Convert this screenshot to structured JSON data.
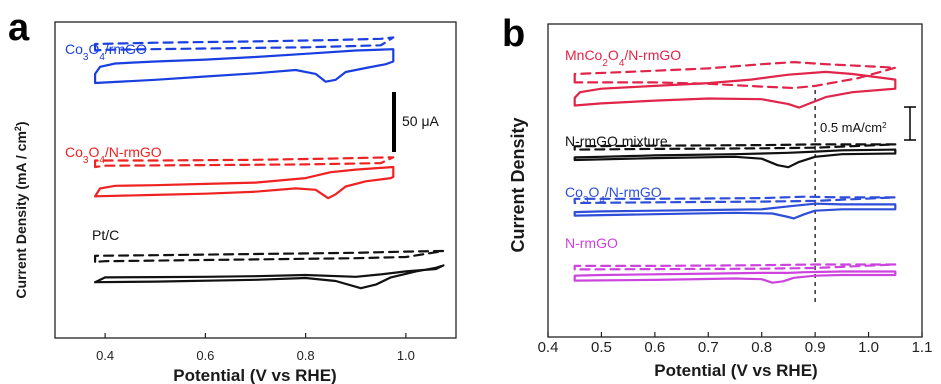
{
  "chart_data": [
    {
      "panel": "a",
      "type": "line",
      "xlabel": "Potential (V vs RHE)",
      "ylabel": "Current Density (mA / cm²)",
      "xlim": [
        0.3,
        1.1
      ],
      "xticks": [
        "0.4",
        "0.6",
        "0.8",
        "1.0"
      ],
      "xtick_values": [
        0.4,
        0.6,
        0.8,
        1.0
      ],
      "scale_bar": "50 μA",
      "colors": {
        "blue": "#1a3fe0",
        "red": "#ee2222",
        "black": "#111111"
      },
      "series": [
        {
          "name": "Co3O4/rmGO",
          "color": "blue",
          "solid": [
            [
              0.38,
              -2
            ],
            [
              0.5,
              -1.5
            ],
            [
              0.6,
              -1
            ],
            [
              0.7,
              -0.5
            ],
            [
              0.78,
              0
            ],
            [
              0.82,
              -0.6
            ],
            [
              0.84,
              -1.8
            ],
            [
              0.86,
              -1.5
            ],
            [
              0.88,
              -0.3
            ],
            [
              0.92,
              0.3
            ],
            [
              0.96,
              0.9
            ],
            [
              0.975,
              1.3
            ],
            [
              0.975,
              3.2
            ],
            [
              0.9,
              3.0
            ],
            [
              0.8,
              2.5
            ],
            [
              0.7,
              2.0
            ],
            [
              0.6,
              1.6
            ],
            [
              0.5,
              1.3
            ],
            [
              0.42,
              1.0
            ],
            [
              0.39,
              0.5
            ],
            [
              0.38,
              -0.6
            ],
            [
              0.38,
              -2
            ]
          ],
          "dashed": [
            [
              0.38,
              3.0
            ],
            [
              0.38,
              4.0
            ],
            [
              0.5,
              4.2
            ],
            [
              0.7,
              4.4
            ],
            [
              0.85,
              4.6
            ],
            [
              0.95,
              4.8
            ],
            [
              0.975,
              5.0
            ],
            [
              0.95,
              3.8
            ],
            [
              0.8,
              3.5
            ],
            [
              0.6,
              3.3
            ],
            [
              0.4,
              3.1
            ],
            [
              0.38,
              3.0
            ]
          ]
        },
        {
          "name": "Co3O4/N-rmGO",
          "color": "red",
          "solid": [
            [
              0.38,
              -2.5
            ],
            [
              0.5,
              -2.3
            ],
            [
              0.6,
              -2.1
            ],
            [
              0.7,
              -1.8
            ],
            [
              0.78,
              -1.3
            ],
            [
              0.82,
              -1.5
            ],
            [
              0.845,
              -2.8
            ],
            [
              0.86,
              -2.2
            ],
            [
              0.88,
              -1.0
            ],
            [
              0.92,
              -0.2
            ],
            [
              0.97,
              0.3
            ],
            [
              0.975,
              0.5
            ],
            [
              0.975,
              2.0
            ],
            [
              0.9,
              1.6
            ],
            [
              0.85,
              1.2
            ],
            [
              0.8,
              0.3
            ],
            [
              0.7,
              -0.4
            ],
            [
              0.6,
              -0.6
            ],
            [
              0.5,
              -0.8
            ],
            [
              0.42,
              -0.9
            ],
            [
              0.39,
              -1.3
            ],
            [
              0.38,
              -2.5
            ]
          ],
          "dashed": [
            [
              0.38,
              2.0
            ],
            [
              0.38,
              3.0
            ],
            [
              0.5,
              3.0
            ],
            [
              0.7,
              3.1
            ],
            [
              0.85,
              3.3
            ],
            [
              0.975,
              3.5
            ],
            [
              0.95,
              2.6
            ],
            [
              0.8,
              2.4
            ],
            [
              0.6,
              2.3
            ],
            [
              0.4,
              2.2
            ],
            [
              0.38,
              2.0
            ]
          ]
        },
        {
          "name": "Pt/C",
          "color": "black",
          "solid": [
            [
              0.38,
              -1.2
            ],
            [
              0.5,
              -1.1
            ],
            [
              0.7,
              -0.8
            ],
            [
              0.8,
              -0.5
            ],
            [
              0.86,
              -1.0
            ],
            [
              0.91,
              -2.2
            ],
            [
              0.94,
              -1.6
            ],
            [
              0.97,
              -0.4
            ],
            [
              1.02,
              0.6
            ],
            [
              1.06,
              1.2
            ],
            [
              1.075,
              1.6
            ],
            [
              1.06,
              1.0
            ],
            [
              1.0,
              0.6
            ],
            [
              0.95,
              0.1
            ],
            [
              0.9,
              -0.3
            ],
            [
              0.8,
              0.0
            ],
            [
              0.7,
              -0.2
            ],
            [
              0.6,
              -0.3
            ],
            [
              0.5,
              -0.35
            ],
            [
              0.4,
              -0.4
            ],
            [
              0.38,
              -1.2
            ]
          ],
          "dashed": [
            [
              0.38,
              2.2
            ],
            [
              0.38,
              3.2
            ],
            [
              0.5,
              3.3
            ],
            [
              0.7,
              3.5
            ],
            [
              0.9,
              3.7
            ],
            [
              1.0,
              3.9
            ],
            [
              1.075,
              4.0
            ],
            [
              1.0,
              3.0
            ],
            [
              0.9,
              2.8
            ],
            [
              0.7,
              2.6
            ],
            [
              0.5,
              2.4
            ],
            [
              0.4,
              2.3
            ],
            [
              0.38,
              2.2
            ]
          ]
        }
      ]
    },
    {
      "panel": "b",
      "type": "line",
      "xlabel": "Potential (V vs RHE)",
      "ylabel": "Current Density",
      "xlim": [
        0.4,
        1.1
      ],
      "xticks": [
        "0.4",
        "0.5",
        "0.6",
        "0.7",
        "0.8",
        "0.9",
        "1.0",
        "1.1"
      ],
      "xtick_values": [
        0.4,
        0.5,
        0.6,
        0.7,
        0.8,
        0.9,
        1.0,
        1.1
      ],
      "reference_line_x": 0.9,
      "scale_bar": "0.5 mA/cm²",
      "colors": {
        "crimson": "#e0244a",
        "black": "#111111",
        "blue": "#2e4ed8",
        "magenta": "#cc44dd"
      },
      "series": [
        {
          "name": "MnCo2O4/N-rmGO",
          "color": "crimson",
          "solid": [
            [
              0.45,
              -1.5
            ],
            [
              0.5,
              -1.2
            ],
            [
              0.6,
              -0.8
            ],
            [
              0.7,
              -0.5
            ],
            [
              0.8,
              -0.6
            ],
            [
              0.85,
              -1.3
            ],
            [
              0.87,
              -1.8
            ],
            [
              0.89,
              -1.2
            ],
            [
              0.92,
              -0.3
            ],
            [
              0.97,
              0.4
            ],
            [
              1.05,
              0.9
            ],
            [
              1.05,
              2.2
            ],
            [
              0.97,
              3.0
            ],
            [
              0.92,
              3.3
            ],
            [
              0.85,
              2.9
            ],
            [
              0.78,
              2.2
            ],
            [
              0.7,
              1.7
            ],
            [
              0.6,
              1.3
            ],
            [
              0.5,
              0.9
            ],
            [
              0.46,
              0.4
            ],
            [
              0.45,
              -0.4
            ],
            [
              0.45,
              -1.5
            ]
          ],
          "dashed": [
            [
              0.45,
              1.8
            ],
            [
              0.45,
              3.0
            ],
            [
              0.55,
              3.3
            ],
            [
              0.7,
              3.8
            ],
            [
              0.8,
              4.4
            ],
            [
              0.86,
              4.7
            ],
            [
              0.92,
              4.4
            ],
            [
              1.0,
              4.1
            ],
            [
              1.05,
              3.9
            ],
            [
              0.98,
              2.4
            ],
            [
              0.9,
              1.3
            ],
            [
              0.86,
              1.0
            ],
            [
              0.8,
              1.2
            ],
            [
              0.7,
              1.6
            ],
            [
              0.6,
              1.8
            ],
            [
              0.5,
              1.8
            ],
            [
              0.45,
              1.8
            ]
          ]
        },
        {
          "name": "N-rmGO mixture",
          "color": "black",
          "solid": [
            [
              0.45,
              0.0
            ],
            [
              0.6,
              0.3
            ],
            [
              0.75,
              0.5
            ],
            [
              0.8,
              0.2
            ],
            [
              0.83,
              -0.8
            ],
            [
              0.85,
              -1.1
            ],
            [
              0.87,
              -0.3
            ],
            [
              0.9,
              0.5
            ],
            [
              0.95,
              0.9
            ],
            [
              1.05,
              1.0
            ],
            [
              1.05,
              1.6
            ],
            [
              0.95,
              1.5
            ],
            [
              0.9,
              1.3
            ],
            [
              0.85,
              1.1
            ],
            [
              0.75,
              0.9
            ],
            [
              0.6,
              0.7
            ],
            [
              0.5,
              0.5
            ],
            [
              0.45,
              0.4
            ],
            [
              0.45,
              0.0
            ]
          ],
          "dashed": [
            [
              0.45,
              1.6
            ],
            [
              0.45,
              2.1
            ],
            [
              0.6,
              2.2
            ],
            [
              0.8,
              2.3
            ],
            [
              0.9,
              2.4
            ],
            [
              1.05,
              2.4
            ],
            [
              0.9,
              1.9
            ],
            [
              0.8,
              1.8
            ],
            [
              0.6,
              1.7
            ],
            [
              0.45,
              1.6
            ]
          ]
        },
        {
          "name": "Co3O4/N-rmGO",
          "color": "blue",
          "solid": [
            [
              0.45,
              -0.8
            ],
            [
              0.6,
              -0.6
            ],
            [
              0.75,
              -0.4
            ],
            [
              0.82,
              -0.5
            ],
            [
              0.85,
              -1.0
            ],
            [
              0.86,
              -1.2
            ],
            [
              0.88,
              -0.6
            ],
            [
              0.9,
              -0.1
            ],
            [
              0.95,
              0.1
            ],
            [
              1.05,
              0.1
            ],
            [
              1.05,
              0.8
            ],
            [
              0.95,
              0.8
            ],
            [
              0.9,
              0.9
            ],
            [
              0.86,
              0.6
            ],
            [
              0.8,
              0.1
            ],
            [
              0.7,
              0.0
            ],
            [
              0.6,
              -0.1
            ],
            [
              0.5,
              -0.2
            ],
            [
              0.45,
              -0.3
            ],
            [
              0.45,
              -0.8
            ]
          ],
          "dashed": [
            [
              0.45,
              1.0
            ],
            [
              0.45,
              1.6
            ],
            [
              0.6,
              1.6
            ],
            [
              0.8,
              1.7
            ],
            [
              0.88,
              1.9
            ],
            [
              0.95,
              1.8
            ],
            [
              1.05,
              1.8
            ],
            [
              0.9,
              1.3
            ],
            [
              0.8,
              1.2
            ],
            [
              0.6,
              1.1
            ],
            [
              0.45,
              1.0
            ]
          ]
        },
        {
          "name": "N-rmGO",
          "color": "magenta",
          "solid": [
            [
              0.45,
              -0.8
            ],
            [
              0.6,
              -0.7
            ],
            [
              0.75,
              -0.5
            ],
            [
              0.8,
              -0.6
            ],
            [
              0.82,
              -1.1
            ],
            [
              0.84,
              -0.9
            ],
            [
              0.86,
              -0.4
            ],
            [
              0.9,
              -0.1
            ],
            [
              0.95,
              0.0
            ],
            [
              1.05,
              0.0
            ],
            [
              1.05,
              0.5
            ],
            [
              0.95,
              0.5
            ],
            [
              0.88,
              0.4
            ],
            [
              0.85,
              0.3
            ],
            [
              0.8,
              0.3
            ],
            [
              0.7,
              0.2
            ],
            [
              0.6,
              0.1
            ],
            [
              0.5,
              0.0
            ],
            [
              0.45,
              -0.1
            ],
            [
              0.45,
              -0.8
            ]
          ],
          "dashed": [
            [
              0.45,
              0.8
            ],
            [
              0.45,
              1.3
            ],
            [
              0.6,
              1.3
            ],
            [
              0.8,
              1.4
            ],
            [
              0.9,
              1.5
            ],
            [
              1.05,
              1.5
            ],
            [
              0.9,
              1.0
            ],
            [
              0.8,
              0.9
            ],
            [
              0.6,
              0.85
            ],
            [
              0.45,
              0.8
            ]
          ]
        }
      ]
    }
  ]
}
